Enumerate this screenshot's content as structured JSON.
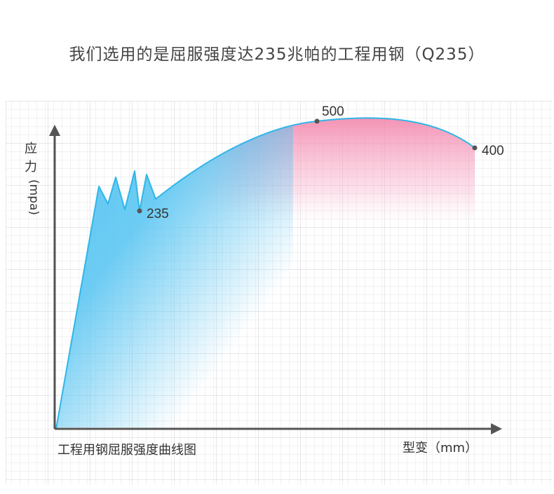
{
  "title": "我们选用的是屈服强度达235兆帕的工程用钢（Q235）",
  "caption": "工程用钢屈服强度曲线图",
  "chart_data": {
    "type": "line",
    "title": "我们选用的是屈服强度达235兆帕的工程用钢（Q235）",
    "ylabel_cn": "应力",
    "ylabel_unit": "(mpa)",
    "xlabel": "型变（mm）",
    "grid": true,
    "annotations": [
      {
        "label": "235",
        "value": 235
      },
      {
        "label": "500",
        "value": 500
      },
      {
        "label": "400",
        "value": 400
      }
    ],
    "colors": {
      "line": "#2fb6e8",
      "fill_blue": "#5cc6f2",
      "fill_pink": "#f27ea6",
      "axis": "#555555",
      "grid": "#dcdce0"
    }
  }
}
